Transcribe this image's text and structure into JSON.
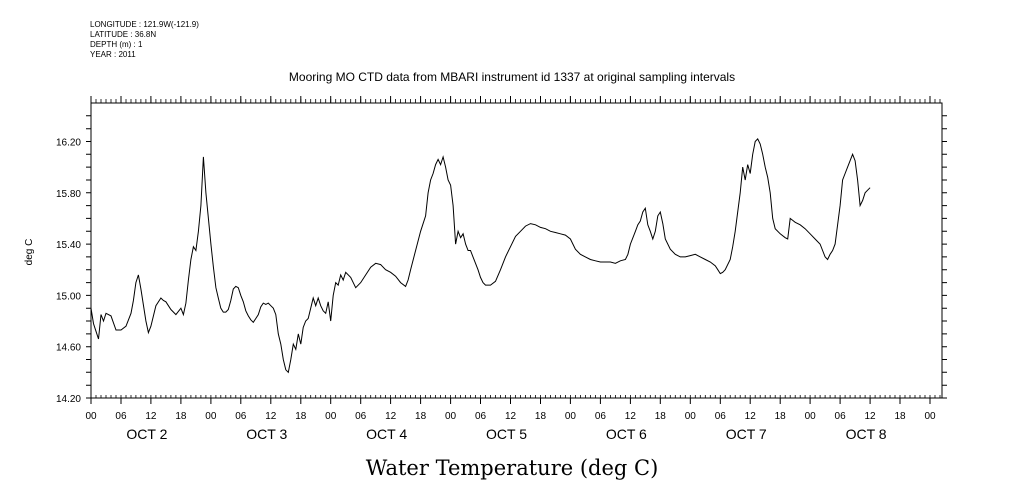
{
  "meta": {
    "longitude": "LONGITUDE : 121.9W(-121.9)",
    "latitude": "LATITUDE : 36.8N",
    "depth": "DEPTH (m) : 1",
    "year": "YEAR : 2011"
  },
  "chart_data": {
    "type": "line",
    "title": "Mooring MO CTD data from MBARI instrument id 1337 at original sampling intervals",
    "xlabel": "",
    "ylabel": "deg C",
    "bottom_label": "Water Temperature (deg C)",
    "ylim": [
      14.2,
      16.5
    ],
    "yticks": [
      "14.20",
      "14.60",
      "15.00",
      "15.40",
      "15.80",
      "16.20"
    ],
    "x_unit": "hours since OCT 2 00:00",
    "xlim": [
      0,
      168
    ],
    "hour_labels": [
      "00",
      "06",
      "12",
      "18"
    ],
    "day_labels": [
      "OCT 2",
      "OCT 3",
      "OCT 4",
      "OCT 5",
      "OCT 6",
      "OCT 7",
      "OCT 8"
    ],
    "grid": false,
    "series": [
      {
        "points": [
          [
            0,
            14.9
          ],
          [
            0.5,
            14.78
          ],
          [
            1,
            14.72
          ],
          [
            1.5,
            14.66
          ],
          [
            2,
            14.85
          ],
          [
            2.5,
            14.8
          ],
          [
            3,
            14.86
          ],
          [
            4,
            14.84
          ],
          [
            5,
            14.73
          ],
          [
            6,
            14.73
          ],
          [
            7,
            14.76
          ],
          [
            8,
            14.86
          ],
          [
            8.5,
            14.96
          ],
          [
            9,
            15.1
          ],
          [
            9.5,
            15.16
          ],
          [
            10,
            15.05
          ],
          [
            11,
            14.8
          ],
          [
            11.5,
            14.71
          ],
          [
            12,
            14.76
          ],
          [
            13,
            14.92
          ],
          [
            14,
            14.98
          ],
          [
            14.5,
            14.96
          ],
          [
            15,
            14.95
          ],
          [
            16,
            14.89
          ],
          [
            17,
            14.85
          ],
          [
            18,
            14.9
          ],
          [
            18.5,
            14.85
          ],
          [
            19,
            14.94
          ],
          [
            19.5,
            15.12
          ],
          [
            20,
            15.28
          ],
          [
            20.5,
            15.38
          ],
          [
            21,
            15.35
          ],
          [
            21.5,
            15.5
          ],
          [
            22,
            15.7
          ],
          [
            22.5,
            16.08
          ],
          [
            23,
            15.8
          ],
          [
            23.5,
            15.6
          ],
          [
            24,
            15.4
          ],
          [
            24.5,
            15.22
          ],
          [
            25,
            15.06
          ],
          [
            25.5,
            14.98
          ],
          [
            26,
            14.9
          ],
          [
            26.5,
            14.87
          ],
          [
            27,
            14.87
          ],
          [
            27.5,
            14.89
          ],
          [
            28,
            14.96
          ],
          [
            28.5,
            15.05
          ],
          [
            29,
            15.07
          ],
          [
            29.5,
            15.06
          ],
          [
            30,
            15.0
          ],
          [
            30.5,
            14.95
          ],
          [
            31,
            14.88
          ],
          [
            31.5,
            14.84
          ],
          [
            32,
            14.81
          ],
          [
            32.5,
            14.79
          ],
          [
            33,
            14.82
          ],
          [
            33.5,
            14.85
          ],
          [
            34,
            14.91
          ],
          [
            34.5,
            14.94
          ],
          [
            35,
            14.93
          ],
          [
            35.5,
            14.94
          ],
          [
            36,
            14.92
          ],
          [
            36.5,
            14.9
          ],
          [
            37,
            14.85
          ],
          [
            37.5,
            14.7
          ],
          [
            38,
            14.62
          ],
          [
            38.5,
            14.5
          ],
          [
            39,
            14.42
          ],
          [
            39.5,
            14.4
          ],
          [
            40,
            14.5
          ],
          [
            40.5,
            14.62
          ],
          [
            41,
            14.58
          ],
          [
            41.5,
            14.7
          ],
          [
            42,
            14.62
          ],
          [
            42.5,
            14.75
          ],
          [
            43,
            14.8
          ],
          [
            43.5,
            14.82
          ],
          [
            44,
            14.9
          ],
          [
            44.5,
            14.98
          ],
          [
            45,
            14.92
          ],
          [
            45.5,
            14.98
          ],
          [
            46,
            14.92
          ],
          [
            46.5,
            14.88
          ],
          [
            47,
            14.86
          ],
          [
            47.5,
            14.95
          ],
          [
            48,
            14.8
          ],
          [
            48.5,
            15.0
          ],
          [
            49,
            15.1
          ],
          [
            49.5,
            15.08
          ],
          [
            50,
            15.16
          ],
          [
            50.5,
            15.12
          ],
          [
            51,
            15.18
          ],
          [
            52,
            15.14
          ],
          [
            53,
            15.06
          ],
          [
            54,
            15.1
          ],
          [
            55,
            15.16
          ],
          [
            56,
            15.22
          ],
          [
            57,
            15.25
          ],
          [
            58,
            15.24
          ],
          [
            59,
            15.2
          ],
          [
            60,
            15.18
          ],
          [
            61,
            15.15
          ],
          [
            62,
            15.1
          ],
          [
            63,
            15.07
          ],
          [
            63.5,
            15.12
          ],
          [
            64,
            15.2
          ],
          [
            65,
            15.35
          ],
          [
            66,
            15.5
          ],
          [
            67,
            15.62
          ],
          [
            67.5,
            15.8
          ],
          [
            68,
            15.9
          ],
          [
            68.5,
            15.95
          ],
          [
            69,
            16.02
          ],
          [
            69.5,
            16.06
          ],
          [
            70,
            16.02
          ],
          [
            70.5,
            16.08
          ],
          [
            71,
            16.0
          ],
          [
            71.5,
            15.9
          ],
          [
            72,
            15.86
          ],
          [
            72.5,
            15.7
          ],
          [
            73,
            15.4
          ],
          [
            73.5,
            15.5
          ],
          [
            74,
            15.45
          ],
          [
            74.5,
            15.48
          ],
          [
            75,
            15.4
          ],
          [
            75.5,
            15.35
          ],
          [
            76,
            15.35
          ],
          [
            76.5,
            15.3
          ],
          [
            77,
            15.25
          ],
          [
            77.5,
            15.2
          ],
          [
            78,
            15.14
          ],
          [
            78.5,
            15.1
          ],
          [
            79,
            15.08
          ],
          [
            80,
            15.08
          ],
          [
            81,
            15.11
          ],
          [
            82,
            15.2
          ],
          [
            83,
            15.3
          ],
          [
            84,
            15.38
          ],
          [
            85,
            15.46
          ],
          [
            86,
            15.5
          ],
          [
            87,
            15.54
          ],
          [
            88,
            15.56
          ],
          [
            89,
            15.55
          ],
          [
            90,
            15.53
          ],
          [
            91,
            15.52
          ],
          [
            92,
            15.5
          ],
          [
            93,
            15.49
          ],
          [
            94,
            15.48
          ],
          [
            95,
            15.47
          ],
          [
            96,
            15.44
          ],
          [
            97,
            15.36
          ],
          [
            98,
            15.32
          ],
          [
            99,
            15.3
          ],
          [
            100,
            15.28
          ],
          [
            101,
            15.27
          ],
          [
            102,
            15.26
          ],
          [
            103,
            15.26
          ],
          [
            104,
            15.26
          ],
          [
            105,
            15.25
          ],
          [
            106,
            15.27
          ],
          [
            107,
            15.28
          ],
          [
            107.5,
            15.32
          ],
          [
            108,
            15.4
          ],
          [
            109,
            15.5
          ],
          [
            109.5,
            15.55
          ],
          [
            110,
            15.58
          ],
          [
            110.5,
            15.65
          ],
          [
            111,
            15.68
          ],
          [
            111.5,
            15.55
          ],
          [
            112,
            15.5
          ],
          [
            112.5,
            15.44
          ],
          [
            113,
            15.5
          ],
          [
            113.5,
            15.62
          ],
          [
            114,
            15.65
          ],
          [
            114.5,
            15.56
          ],
          [
            115,
            15.44
          ],
          [
            116,
            15.36
          ],
          [
            117,
            15.32
          ],
          [
            118,
            15.3
          ],
          [
            119,
            15.3
          ],
          [
            120,
            15.31
          ],
          [
            121,
            15.32
          ],
          [
            122,
            15.3
          ],
          [
            123,
            15.28
          ],
          [
            124,
            15.26
          ],
          [
            125,
            15.23
          ],
          [
            125.5,
            15.2
          ],
          [
            126,
            15.17
          ],
          [
            126.5,
            15.18
          ],
          [
            127,
            15.2
          ],
          [
            128,
            15.28
          ],
          [
            128.5,
            15.38
          ],
          [
            129,
            15.5
          ],
          [
            129.5,
            15.65
          ],
          [
            130,
            15.8
          ],
          [
            130.5,
            16.0
          ],
          [
            131,
            15.9
          ],
          [
            131.5,
            16.02
          ],
          [
            132,
            15.95
          ],
          [
            132.5,
            16.1
          ],
          [
            133,
            16.2
          ],
          [
            133.5,
            16.22
          ],
          [
            134,
            16.18
          ],
          [
            134.5,
            16.1
          ],
          [
            135,
            16.0
          ],
          [
            135.5,
            15.92
          ],
          [
            136,
            15.8
          ],
          [
            136.5,
            15.6
          ],
          [
            137,
            15.52
          ],
          [
            138,
            15.48
          ],
          [
            139,
            15.45
          ],
          [
            139.5,
            15.44
          ],
          [
            140,
            15.6
          ],
          [
            141,
            15.57
          ],
          [
            142,
            15.55
          ],
          [
            143,
            15.52
          ],
          [
            144,
            15.48
          ],
          [
            145,
            15.44
          ],
          [
            146,
            15.4
          ],
          [
            146.5,
            15.35
          ],
          [
            147,
            15.3
          ],
          [
            147.5,
            15.28
          ],
          [
            148,
            15.32
          ],
          [
            148.5,
            15.35
          ],
          [
            149,
            15.4
          ],
          [
            149.5,
            15.55
          ],
          [
            150,
            15.7
          ],
          [
            150.5,
            15.9
          ],
          [
            151,
            15.95
          ],
          [
            151.5,
            16.0
          ],
          [
            152,
            16.05
          ],
          [
            152.5,
            16.1
          ],
          [
            153,
            16.05
          ],
          [
            153.5,
            15.9
          ],
          [
            154,
            15.7
          ],
          [
            154.5,
            15.74
          ],
          [
            155,
            15.8
          ],
          [
            155.5,
            15.82
          ],
          [
            156,
            15.84
          ]
        ]
      }
    ]
  }
}
